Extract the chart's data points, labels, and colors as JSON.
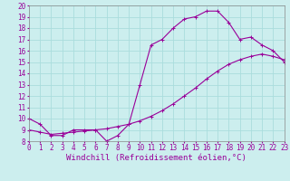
{
  "line1_x": [
    0,
    1,
    2,
    3,
    4,
    5,
    6,
    7,
    8,
    9,
    10,
    11,
    12,
    13,
    14,
    15,
    16,
    17,
    18,
    19,
    20,
    21,
    22,
    23
  ],
  "line1_y": [
    10.0,
    9.5,
    8.5,
    8.5,
    9.0,
    9.0,
    9.0,
    8.0,
    8.5,
    9.5,
    13.0,
    16.5,
    17.0,
    18.0,
    18.8,
    19.0,
    19.5,
    19.5,
    18.5,
    17.0,
    17.2,
    16.5,
    16.0,
    15.0
  ],
  "line2_x": [
    0,
    1,
    2,
    3,
    4,
    5,
    6,
    7,
    8,
    9,
    10,
    11,
    12,
    13,
    14,
    15,
    16,
    17,
    18,
    19,
    20,
    21,
    22,
    23
  ],
  "line2_y": [
    9.0,
    8.8,
    8.6,
    8.7,
    8.8,
    8.9,
    9.0,
    9.1,
    9.3,
    9.5,
    9.8,
    10.2,
    10.7,
    11.3,
    12.0,
    12.7,
    13.5,
    14.2,
    14.8,
    15.2,
    15.5,
    15.7,
    15.5,
    15.2
  ],
  "line_color": "#990099",
  "bg_color": "#cceeee",
  "grid_color": "#aadddd",
  "xlabel": "Windchill (Refroidissement éolien,°C)",
  "xlim": [
    0,
    23
  ],
  "ylim": [
    8,
    20
  ],
  "xticks": [
    0,
    1,
    2,
    3,
    4,
    5,
    6,
    7,
    8,
    9,
    10,
    11,
    12,
    13,
    14,
    15,
    16,
    17,
    18,
    19,
    20,
    21,
    22,
    23
  ],
  "yticks": [
    8,
    9,
    10,
    11,
    12,
    13,
    14,
    15,
    16,
    17,
    18,
    19,
    20
  ],
  "marker": "+",
  "markersize": 3,
  "linewidth": 0.8,
  "xlabel_fontsize": 6.5,
  "tick_fontsize": 5.5
}
